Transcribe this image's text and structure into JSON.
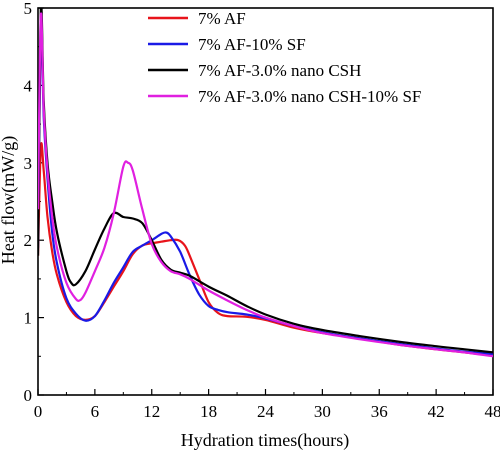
{
  "chart_data": {
    "type": "line",
    "title": "",
    "xlabel": "Hydration times(hours)",
    "ylabel": "Heat flow(mW/g)",
    "xlim": [
      0,
      48
    ],
    "ylim": [
      0,
      5
    ],
    "xticks": [
      0,
      6,
      12,
      18,
      24,
      30,
      36,
      42,
      48
    ],
    "yticks": [
      0,
      1,
      2,
      3,
      4,
      5
    ],
    "grid": false,
    "legend_position": "top-right",
    "series": [
      {
        "name": "7% AF",
        "color": "#e8141b",
        "points": [
          [
            0,
            1.8
          ],
          [
            0.3,
            3.2
          ],
          [
            0.6,
            2.9
          ],
          [
            1,
            2.3
          ],
          [
            1.5,
            1.85
          ],
          [
            2,
            1.55
          ],
          [
            3,
            1.2
          ],
          [
            4,
            1.02
          ],
          [
            5,
            0.97
          ],
          [
            6,
            1.02
          ],
          [
            7,
            1.2
          ],
          [
            8,
            1.4
          ],
          [
            9,
            1.6
          ],
          [
            10,
            1.82
          ],
          [
            11,
            1.93
          ],
          [
            12,
            1.96
          ],
          [
            13,
            1.98
          ],
          [
            14,
            2.0
          ],
          [
            14.8,
            2.0
          ],
          [
            15.5,
            1.93
          ],
          [
            16,
            1.8
          ],
          [
            17,
            1.5
          ],
          [
            18,
            1.2
          ],
          [
            19,
            1.06
          ],
          [
            20,
            1.02
          ],
          [
            22,
            1.01
          ],
          [
            24,
            0.97
          ],
          [
            27,
            0.87
          ],
          [
            30,
            0.8
          ],
          [
            34,
            0.73
          ],
          [
            38,
            0.65
          ],
          [
            42,
            0.59
          ],
          [
            45,
            0.55
          ],
          [
            48,
            0.51
          ]
        ]
      },
      {
        "name": "7% AF-10% SF",
        "color": "#1a1ae6",
        "points": [
          [
            0,
            1.9
          ],
          [
            0.3,
            4.8
          ],
          [
            0.6,
            3.6
          ],
          [
            1,
            2.8
          ],
          [
            1.5,
            2.1
          ],
          [
            2,
            1.7
          ],
          [
            3,
            1.25
          ],
          [
            4,
            1.05
          ],
          [
            5,
            0.96
          ],
          [
            6,
            1.02
          ],
          [
            7,
            1.22
          ],
          [
            8,
            1.45
          ],
          [
            9,
            1.65
          ],
          [
            10,
            1.85
          ],
          [
            11,
            1.93
          ],
          [
            12,
            2.0
          ],
          [
            13,
            2.08
          ],
          [
            13.5,
            2.1
          ],
          [
            14,
            2.05
          ],
          [
            15,
            1.85
          ],
          [
            16,
            1.55
          ],
          [
            17,
            1.3
          ],
          [
            18,
            1.15
          ],
          [
            19,
            1.1
          ],
          [
            20,
            1.07
          ],
          [
            22,
            1.04
          ],
          [
            24,
            0.99
          ],
          [
            27,
            0.89
          ],
          [
            30,
            0.81
          ],
          [
            34,
            0.73
          ],
          [
            38,
            0.66
          ],
          [
            42,
            0.6
          ],
          [
            45,
            0.56
          ],
          [
            48,
            0.53
          ]
        ]
      },
      {
        "name": "7% AF-3.0% nano CSH",
        "color": "#000000",
        "points": [
          [
            0,
            1.8
          ],
          [
            0.3,
            5.0
          ],
          [
            0.6,
            3.8
          ],
          [
            1,
            3.0
          ],
          [
            1.5,
            2.5
          ],
          [
            2,
            2.1
          ],
          [
            3,
            1.6
          ],
          [
            3.5,
            1.45
          ],
          [
            4,
            1.43
          ],
          [
            5,
            1.6
          ],
          [
            6,
            1.88
          ],
          [
            7,
            2.15
          ],
          [
            8,
            2.35
          ],
          [
            9,
            2.3
          ],
          [
            10,
            2.28
          ],
          [
            11,
            2.22
          ],
          [
            12,
            2.0
          ],
          [
            13,
            1.75
          ],
          [
            14,
            1.62
          ],
          [
            15,
            1.58
          ],
          [
            16,
            1.54
          ],
          [
            18,
            1.4
          ],
          [
            20,
            1.28
          ],
          [
            22,
            1.15
          ],
          [
            24,
            1.04
          ],
          [
            27,
            0.92
          ],
          [
            30,
            0.84
          ],
          [
            34,
            0.76
          ],
          [
            38,
            0.69
          ],
          [
            42,
            0.63
          ],
          [
            45,
            0.59
          ],
          [
            48,
            0.55
          ]
        ]
      },
      {
        "name": "7% AF-3.0% nano CSH-10% SF",
        "color": "#e020e0",
        "points": [
          [
            0,
            2.4
          ],
          [
            0.3,
            4.9
          ],
          [
            0.6,
            3.7
          ],
          [
            1,
            2.9
          ],
          [
            1.5,
            2.3
          ],
          [
            2,
            1.9
          ],
          [
            3,
            1.45
          ],
          [
            4,
            1.24
          ],
          [
            4.5,
            1.23
          ],
          [
            5,
            1.32
          ],
          [
            6,
            1.6
          ],
          [
            7,
            1.9
          ],
          [
            8,
            2.35
          ],
          [
            9,
            2.95
          ],
          [
            9.5,
            3.0
          ],
          [
            10,
            2.9
          ],
          [
            11,
            2.4
          ],
          [
            12,
            1.95
          ],
          [
            13,
            1.72
          ],
          [
            14,
            1.6
          ],
          [
            15,
            1.56
          ],
          [
            16,
            1.5
          ],
          [
            18,
            1.35
          ],
          [
            20,
            1.22
          ],
          [
            22,
            1.1
          ],
          [
            24,
            1.0
          ],
          [
            27,
            0.89
          ],
          [
            30,
            0.8
          ],
          [
            34,
            0.72
          ],
          [
            38,
            0.65
          ],
          [
            42,
            0.59
          ],
          [
            45,
            0.55
          ],
          [
            48,
            0.5
          ]
        ]
      }
    ]
  }
}
